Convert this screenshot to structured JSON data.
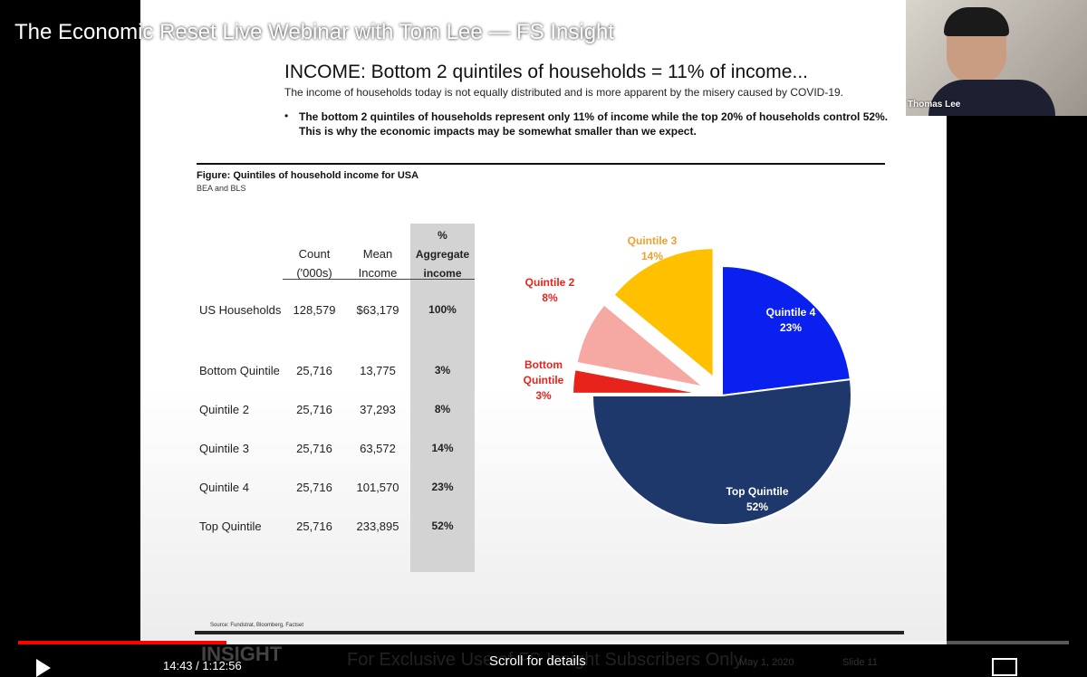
{
  "video": {
    "title": "The Economic Reset Live Webinar with Tom Lee — FS Insight",
    "presenter": "Thomas Lee",
    "time": "14:43 / 1:12:56",
    "hint": "Scroll for details"
  },
  "slide": {
    "heading": "INCOME: Bottom 2 quintiles of households = 11% of income...",
    "subheading": "The income of households today is not equally distributed and is more apparent by the misery caused by COVID-19.",
    "bullet": "The bottom 2 quintiles of households represent only 11% of income while the top 20% of households control 52%.  This is why the economic impacts may be somewhat smaller than we expect.",
    "figure_title": "Figure: Quintiles of household income for USA",
    "figure_subtitle": "BEA and BLS",
    "source": "Source: Fundstrat, Bloomberg, Factset",
    "footer": {
      "logo": "INSIGHT",
      "notice": "For Exclusive Use of FS Insight Subscribers Only",
      "date": "May 1, 2020",
      "slide": "Slide 11"
    }
  },
  "table": {
    "headers": [
      "Count ('000s)",
      "Mean Income",
      "% Aggregate income"
    ],
    "rows": [
      [
        "US Households",
        "128,579",
        "$63,179",
        "100%"
      ],
      [
        "Bottom Quintile",
        "25,716",
        "13,775",
        "3%"
      ],
      [
        "Quintile 2",
        "25,716",
        "37,293",
        "8%"
      ],
      [
        "Quintile 3",
        "25,716",
        "63,572",
        "14%"
      ],
      [
        "Quintile 4",
        "25,716",
        "101,570",
        "23%"
      ],
      [
        "Top Quintile",
        "25,716",
        "233,895",
        "52%"
      ]
    ]
  },
  "chart_data": {
    "type": "pie",
    "categories": [
      "Bottom Quintile",
      "Quintile 2",
      "Quintile 3",
      "Quintile 4",
      "Top Quintile"
    ],
    "values": [
      3,
      8,
      14,
      23,
      52
    ],
    "value_labels": [
      "3%",
      "8%",
      "14%",
      "23%",
      "52%"
    ],
    "colors": [
      "#e8231b",
      "#f6a9a3",
      "#ffc000",
      "#0a20ef",
      "#1f386c"
    ],
    "exploded": [
      true,
      true,
      true,
      false,
      false
    ]
  }
}
